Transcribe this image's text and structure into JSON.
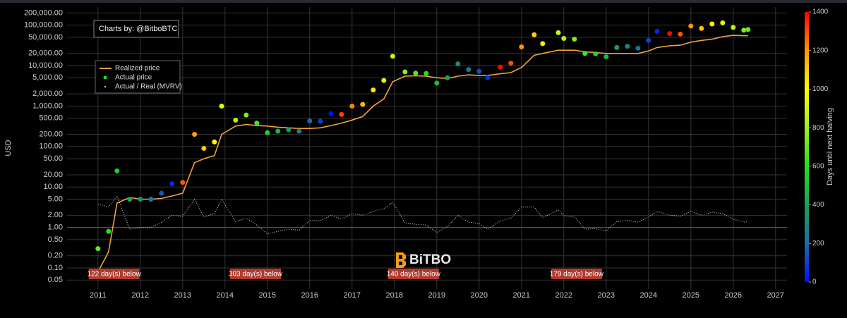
{
  "chart_data": {
    "type": "scatter",
    "y_label": "USD",
    "credit": "Charts by: @BitboBTC",
    "watermark": "BiTBO",
    "log_y": true,
    "grid": true,
    "legend": "top-left",
    "xlim": [
      2010.27,
      2027.27
    ],
    "xticks": [
      2011,
      2012,
      2013,
      2014,
      2015,
      2016,
      2017,
      2018,
      2019,
      2020,
      2021,
      2022,
      2023,
      2024,
      2025,
      2026,
      2027
    ],
    "ylim": [
      0.03,
      280000
    ],
    "yticks": [
      {
        "value": 0.05,
        "label": "0.05"
      },
      {
        "value": 0.1,
        "label": "0.10"
      },
      {
        "value": 0.2,
        "label": "0.20"
      },
      {
        "value": 0.5,
        "label": "0.50"
      },
      {
        "value": 1,
        "label": "1.00"
      },
      {
        "value": 2,
        "label": "2.00"
      },
      {
        "value": 5,
        "label": "5.00"
      },
      {
        "value": 10,
        "label": "10.00"
      },
      {
        "value": 20,
        "label": "20.00"
      },
      {
        "value": 50,
        "label": "50.00"
      },
      {
        "value": 100,
        "label": "100.00"
      },
      {
        "value": 200,
        "label": "200.00"
      },
      {
        "value": 500,
        "label": "500.00"
      },
      {
        "value": 1000,
        "label": "1,000.00"
      },
      {
        "value": 2000,
        "label": "2,000.00"
      },
      {
        "value": 5000,
        "label": "5,000.00"
      },
      {
        "value": 10000,
        "label": "10,000.00"
      },
      {
        "value": 20000,
        "label": "20,000.00"
      },
      {
        "value": 50000,
        "label": "50,000.00"
      },
      {
        "value": 100000,
        "label": "100,000.00"
      },
      {
        "value": 200000,
        "label": "200,000.00"
      }
    ],
    "reference_line": {
      "value": 1,
      "color": "#b22222"
    },
    "x": [
      2011.0,
      2011.25,
      2011.45,
      2011.75,
      2012.0,
      2012.25,
      2012.5,
      2012.75,
      2013.0,
      2013.28,
      2013.5,
      2013.75,
      2013.92,
      2014.25,
      2014.5,
      2014.75,
      2015.0,
      2015.25,
      2015.5,
      2015.75,
      2016.0,
      2016.25,
      2016.5,
      2016.75,
      2017.0,
      2017.25,
      2017.5,
      2017.75,
      2017.96,
      2018.25,
      2018.5,
      2018.75,
      2019.0,
      2019.25,
      2019.5,
      2019.75,
      2020.0,
      2020.2,
      2020.5,
      2020.75,
      2021.0,
      2021.3,
      2021.5,
      2021.87,
      2022.0,
      2022.25,
      2022.5,
      2022.75,
      2023.0,
      2023.25,
      2023.5,
      2023.75,
      2024.0,
      2024.2,
      2024.5,
      2024.75,
      2025.0,
      2025.25,
      2025.5,
      2025.75,
      2026.0,
      2026.25,
      2026.35
    ],
    "series": [
      {
        "name": "Realized price",
        "color": "#f0a040",
        "values": [
          0.08,
          0.25,
          4,
          5.5,
          5,
          5,
          5.2,
          6,
          7,
          40,
          50,
          60,
          200,
          320,
          350,
          330,
          320,
          300,
          290,
          280,
          280,
          290,
          330,
          380,
          450,
          550,
          1000,
          1500,
          4000,
          5500,
          5600,
          5500,
          5000,
          4800,
          5500,
          5900,
          5700,
          5700,
          6300,
          6700,
          9000,
          18000,
          20000,
          24000,
          24000,
          24000,
          22000,
          21000,
          20000,
          20000,
          20000,
          20000,
          23000,
          28000,
          31000,
          32000,
          38000,
          42000,
          45000,
          52000,
          56000,
          55000,
          55000
        ]
      },
      {
        "name": "Actual price",
        "color": "#22dd22",
        "values": [
          0.3,
          0.8,
          25,
          5,
          5,
          5,
          7,
          12,
          13,
          200,
          90,
          130,
          1000,
          450,
          600,
          380,
          220,
          240,
          260,
          240,
          430,
          420,
          650,
          620,
          1000,
          1100,
          2500,
          4300,
          17000,
          7000,
          6500,
          6400,
          3700,
          5000,
          11000,
          8000,
          7200,
          5000,
          9200,
          11500,
          29000,
          58000,
          35000,
          65000,
          47000,
          45000,
          20000,
          19500,
          16500,
          28000,
          30000,
          27000,
          42000,
          70000,
          62000,
          60000,
          95000,
          83000,
          107000,
          114000,
          88000,
          75000,
          78000
        ],
        "days": [
          698,
          606,
          533,
          424,
          332,
          241,
          150,
          58,
          1286,
          1183,
          1103,
          1011,
          949,
          829,
          738,
          646,
          555,
          464,
          373,
          281,
          190,
          99,
          7,
          1319,
          1227,
          1136,
          1045,
          953,
          877,
          771,
          679,
          588,
          496,
          405,
          314,
          223,
          131,
          58,
          1388,
          1296,
          1205,
          1096,
          1023,
          888,
          840,
          749,
          657,
          566,
          475,
          383,
          292,
          201,
          110,
          37,
          1388,
          1296,
          1205,
          1114,
          1023,
          931,
          840,
          749,
          712
        ]
      },
      {
        "name": "Actual / Real (MVRV)",
        "color": "#ffffff",
        "values": [
          3.8,
          3.2,
          6,
          0.9,
          1.0,
          1.0,
          1.35,
          2.0,
          1.9,
          5,
          1.8,
          2.2,
          5,
          1.4,
          1.7,
          1.15,
          0.7,
          0.8,
          0.9,
          0.86,
          1.5,
          1.45,
          2.0,
          1.6,
          2.2,
          2.0,
          2.5,
          2.9,
          4.2,
          1.3,
          1.2,
          1.15,
          0.75,
          1.05,
          2.0,
          1.35,
          1.25,
          0.9,
          1.45,
          1.7,
          3.2,
          3.2,
          1.75,
          2.7,
          1.95,
          1.85,
          0.9,
          0.93,
          0.83,
          1.4,
          1.5,
          1.35,
          1.8,
          2.5,
          2.0,
          1.9,
          2.5,
          2.0,
          2.4,
          2.2,
          1.6,
          1.35,
          1.4
        ]
      }
    ],
    "annotations": [
      {
        "x": 2011.38,
        "text": "122 day(s) below"
      },
      {
        "x": 2014.72,
        "text": "303 day(s) below"
      },
      {
        "x": 2018.45,
        "text": "140 day(s) below"
      },
      {
        "x": 2022.3,
        "text": "179 day(s) below"
      }
    ],
    "annotation_color": "#b03a2e",
    "colorbar": {
      "label": "Days until next halving",
      "lim": [
        0,
        1400
      ],
      "ticks": [
        0,
        200,
        400,
        600,
        800,
        1000,
        1200,
        1400
      ],
      "colors": [
        "#0010ff",
        "#1a6fa0",
        "#1aa05a",
        "#20e020",
        "#a0f020",
        "#ffff00",
        "#ff9900",
        "#ff0000"
      ]
    }
  }
}
